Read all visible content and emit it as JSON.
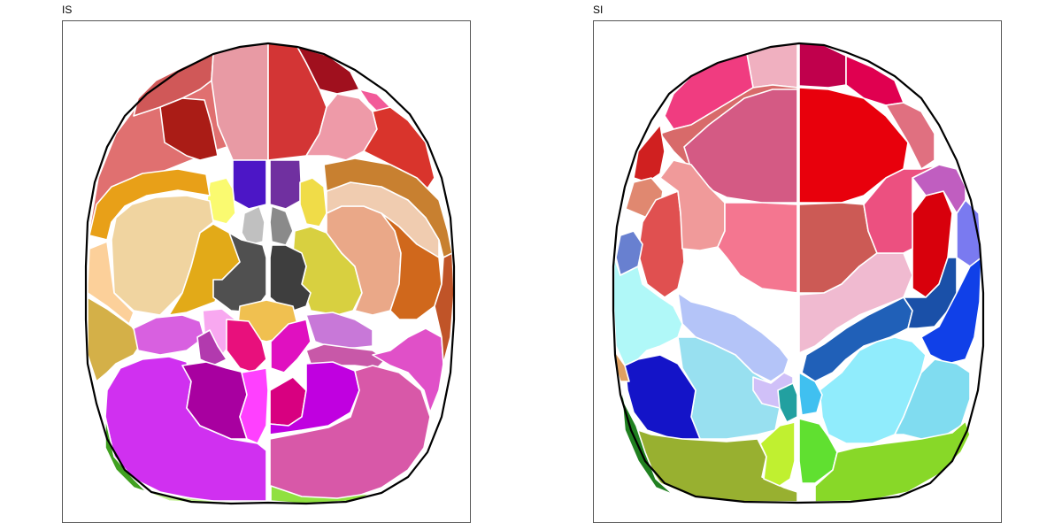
{
  "views": [
    {
      "key": "left",
      "title": "IS"
    },
    {
      "key": "right",
      "title": "SI"
    }
  ],
  "colors": {
    "left": [
      "#e07070",
      "#d05858",
      "#e89aa4",
      "#d33535",
      "#a0101e",
      "#f25a99",
      "#aa1c16",
      "#ee9aa8",
      "#d9342c",
      "#4c16c6",
      "#7030a0",
      "#fafa70",
      "#f0dc48",
      "#c0c0c0",
      "#8a8a8a",
      "#e8a018",
      "#f0d4a0",
      "#fcd09a",
      "#e2aa18",
      "#d8d040",
      "#eaa888",
      "#f0ccb0",
      "#d0681c",
      "#c88030",
      "#505050",
      "#3e3e3e",
      "#d4b048",
      "#f0c050",
      "#d860e0",
      "#f8a8f0",
      "#e8107c",
      "#e010c0",
      "#b23aae",
      "#c878d8",
      "#c858a8",
      "#d030f0",
      "#a800a0",
      "#ff40ff",
      "#d80080",
      "#c000e0",
      "#d858a8",
      "#e050c8",
      "#40a020",
      "#c0f090",
      "#90e040",
      "#c05428"
    ],
    "right": [
      "#f0b0c0",
      "#c0004c",
      "#e00050",
      "#f03c80",
      "#d86a6a",
      "#d45a84",
      "#e8000c",
      "#e07080",
      "#d02020",
      "#e08870",
      "#e05050",
      "#f09a9a",
      "#f47690",
      "#cc5a55",
      "#f0bad0",
      "#d8000c",
      "#7a7af0",
      "#6880d0",
      "#c05ec0",
      "#ec5080",
      "#2060b8",
      "#1a50a8",
      "#1040e8",
      "#b0f8f8",
      "#b4c4f8",
      "#98e0f0",
      "#90ecfc",
      "#80dcf0",
      "#d0c0f8",
      "#22a0a0",
      "#40c0f0",
      "#1414c8",
      "#98b030",
      "#c0f030",
      "#60e030",
      "#88d828",
      "#208020",
      "#e0a060"
    ]
  }
}
